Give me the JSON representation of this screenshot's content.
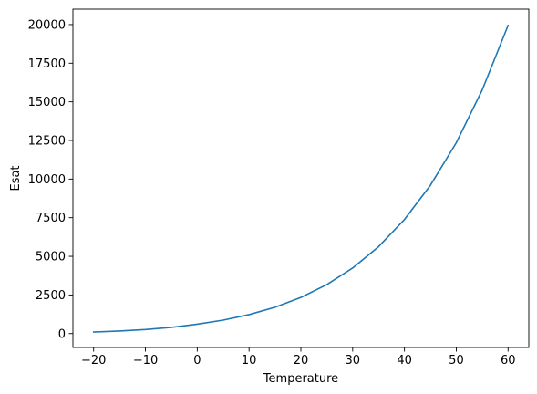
{
  "chart_data": {
    "type": "line",
    "title": "",
    "xlabel": "Temperature",
    "ylabel": "Esat",
    "xlim": [
      -24,
      64
    ],
    "ylim": [
      -900,
      21000
    ],
    "xticks": [
      -20,
      -10,
      0,
      10,
      20,
      30,
      40,
      50,
      60
    ],
    "xtick_labels": [
      "−20",
      "−10",
      "0",
      "10",
      "20",
      "30",
      "40",
      "50",
      "60"
    ],
    "yticks": [
      0,
      2500,
      5000,
      7500,
      10000,
      12500,
      15000,
      17500,
      20000
    ],
    "ytick_labels": [
      "0",
      "2500",
      "5000",
      "7500",
      "10000",
      "12500",
      "15000",
      "17500",
      "20000"
    ],
    "grid": false,
    "legend": "none",
    "series": [
      {
        "color": "#1f77b4",
        "x": [
          -20,
          -15,
          -10,
          -5,
          0,
          5,
          10,
          15,
          20,
          25,
          30,
          35,
          40,
          45,
          50,
          55,
          60
        ],
        "y": [
          103,
          165,
          260,
          401,
          611,
          872,
          1228,
          1705,
          2339,
          3169,
          4246,
          5625,
          7384,
          9595,
          12352,
          15762,
          19946
        ]
      }
    ]
  }
}
